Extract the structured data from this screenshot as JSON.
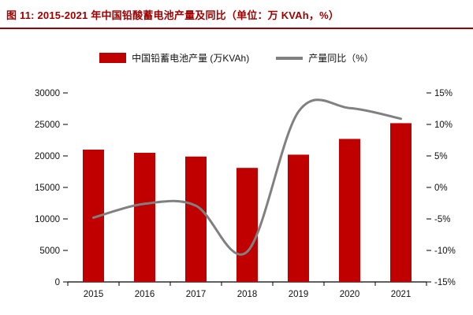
{
  "header": {
    "title": "图 11: 2015-2021 年中国铅酸蓄电池产量及同比（单位：万 KVAh，%）"
  },
  "chart_data": {
    "type": "bar",
    "title": "2015-2021 年中国铅酸蓄电池产量及同比",
    "categories": [
      "2015",
      "2016",
      "2017",
      "2018",
      "2019",
      "2020",
      "2021"
    ],
    "series": [
      {
        "name": "中国铅蓄电池产量 (万KVAh)",
        "type": "bar",
        "axis": "left",
        "color": "#c00000",
        "values": [
          21000,
          20500,
          19900,
          18100,
          20200,
          22700,
          25200
        ]
      },
      {
        "name": "产量同比（%）",
        "type": "line",
        "axis": "right",
        "color": "#808080",
        "values": [
          -4.8,
          -2.6,
          -2.9,
          -10.2,
          12.0,
          12.6,
          10.9
        ]
      }
    ],
    "left_axis": {
      "min": 0,
      "max": 30000,
      "step": 5000,
      "ticks": [
        0,
        5000,
        10000,
        15000,
        20000,
        25000,
        30000
      ]
    },
    "right_axis": {
      "min": -15,
      "max": 15,
      "step": 5,
      "ticks": [
        "-15%",
        "-10%",
        "-5%",
        "0%",
        "5%",
        "10%",
        "15%"
      ]
    },
    "grid": false,
    "legend_position": "top"
  }
}
